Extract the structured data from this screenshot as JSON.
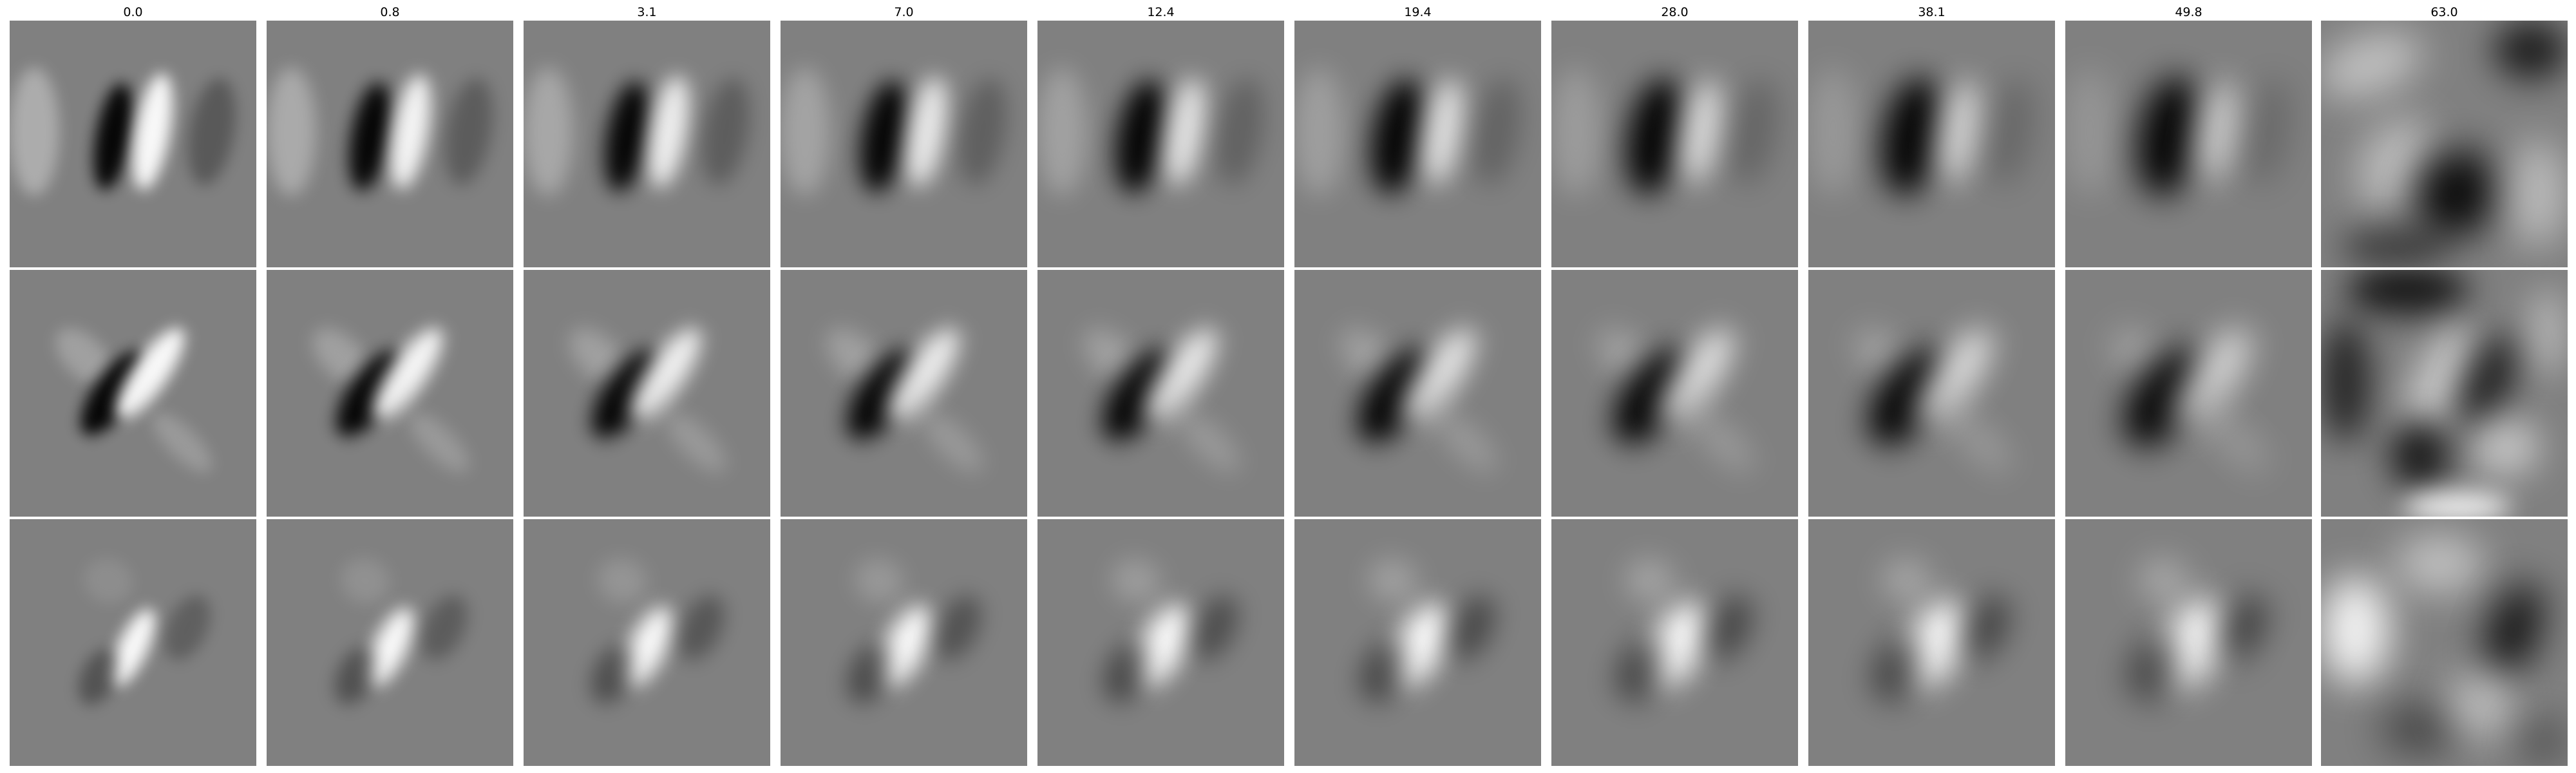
{
  "figure": {
    "column_labels": [
      "0.0",
      "0.8",
      "3.1",
      "7.0",
      "12.4",
      "19.4",
      "28.0",
      "38.1",
      "49.8",
      "63.0"
    ],
    "row_count": 3,
    "colors": {
      "background": "#ffffff",
      "neutral_gray": "#808080",
      "dark_lobe": "#000000",
      "light_lobe": "#ffffff"
    }
  }
}
